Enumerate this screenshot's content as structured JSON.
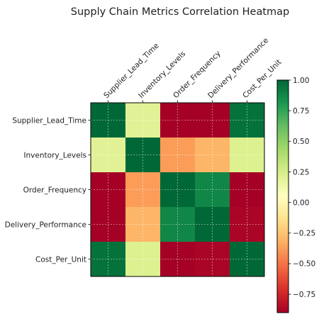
{
  "chart_data": {
    "type": "heatmap",
    "title": "Supply Chain Metrics Correlation Heatmap",
    "x_labels": [
      "Supplier_Lead_Time",
      "Inventory_Levels",
      "Order_Frequency",
      "Delivery_Performance",
      "Cost_Per_Unit"
    ],
    "y_labels": [
      "Supplier_Lead_Time",
      "Inventory_Levels",
      "Order_Frequency",
      "Delivery_Performance",
      "Cost_Per_Unit"
    ],
    "values": [
      [
        1.0,
        0.2,
        -0.92,
        -0.9,
        0.96
      ],
      [
        0.2,
        1.0,
        -0.38,
        -0.3,
        0.22
      ],
      [
        -0.92,
        -0.38,
        1.0,
        0.88,
        -0.9
      ],
      [
        -0.9,
        -0.3,
        0.88,
        1.0,
        -0.88
      ],
      [
        0.96,
        0.22,
        -0.9,
        -0.88,
        1.0
      ]
    ],
    "colormap": "RdYlGn",
    "vmin": -0.9,
    "vmax": 1.0,
    "colorbar_ticks": [
      "1.00",
      "0.75",
      "0.50",
      "0.25",
      "0.00",
      "−0.25",
      "−0.50",
      "−0.75"
    ],
    "colorbar_tick_values": [
      1.0,
      0.75,
      0.5,
      0.25,
      0.0,
      -0.25,
      -0.5,
      -0.75
    ],
    "grid": true
  }
}
